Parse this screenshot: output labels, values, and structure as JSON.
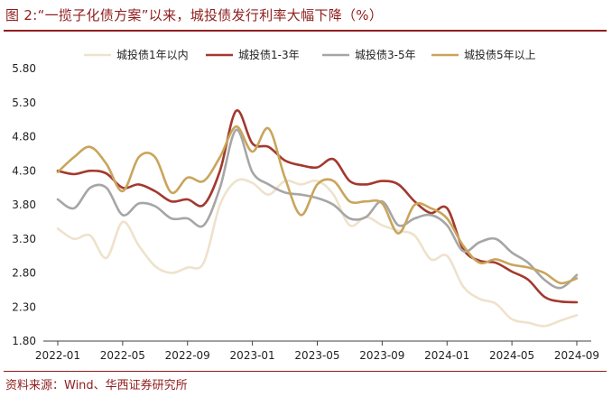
{
  "figure": {
    "title": "图 2:“一揽子化债方案”以来，城投债发行利率大幅下降（%）",
    "source": "资料来源：Wind、华西证券研究所"
  },
  "colors": {
    "brand": "#8f1d1d",
    "series": [
      "#efe2cc",
      "#a3392e",
      "#a6a6a6",
      "#c9a55c"
    ]
  },
  "chart_data": {
    "type": "line",
    "title": "",
    "xlabel": "",
    "ylabel": "",
    "ylim": [
      1.8,
      5.8
    ],
    "yticks": [
      "5.80",
      "5.30",
      "4.80",
      "4.30",
      "3.80",
      "3.30",
      "2.80",
      "2.30",
      "1.80"
    ],
    "xticks": [
      "2022-01",
      "2022-05",
      "2022-09",
      "2023-01",
      "2023-05",
      "2023-09",
      "2024-01",
      "2024-05",
      "2024-09"
    ],
    "x": [
      "2022-01",
      "2022-02",
      "2022-03",
      "2022-04",
      "2022-05",
      "2022-06",
      "2022-07",
      "2022-08",
      "2022-09",
      "2022-10",
      "2022-11",
      "2022-12",
      "2023-01",
      "2023-02",
      "2023-03",
      "2023-04",
      "2023-05",
      "2023-06",
      "2023-07",
      "2023-08",
      "2023-09",
      "2023-10",
      "2023-11",
      "2023-12",
      "2024-01",
      "2024-02",
      "2024-03",
      "2024-04",
      "2024-05",
      "2024-06",
      "2024-07",
      "2024-08",
      "2024-09"
    ],
    "grid": false,
    "legend_position": "top",
    "series": [
      {
        "name": "城投债1年以内",
        "values": [
          3.45,
          3.3,
          3.35,
          3.02,
          3.55,
          3.2,
          2.9,
          2.8,
          2.88,
          2.95,
          3.8,
          4.15,
          4.12,
          3.95,
          4.15,
          4.1,
          4.15,
          3.95,
          3.5,
          3.62,
          3.5,
          3.42,
          3.35,
          3.0,
          3.05,
          2.6,
          2.42,
          2.35,
          2.12,
          2.07,
          2.02,
          2.1,
          2.18
        ]
      },
      {
        "name": "城投债1-3年",
        "values": [
          4.3,
          4.25,
          4.3,
          4.26,
          4.05,
          4.1,
          4.0,
          3.85,
          3.88,
          3.8,
          4.3,
          5.18,
          4.7,
          4.65,
          4.45,
          4.38,
          4.35,
          4.47,
          4.15,
          4.1,
          4.15,
          4.1,
          3.85,
          3.68,
          3.75,
          3.15,
          2.98,
          2.95,
          2.82,
          2.7,
          2.45,
          2.38,
          2.37
        ]
      },
      {
        "name": "城投债3-5年",
        "values": [
          3.88,
          3.75,
          4.05,
          4.05,
          3.65,
          3.82,
          3.78,
          3.6,
          3.6,
          3.5,
          4.05,
          4.9,
          4.28,
          4.1,
          3.98,
          3.95,
          3.9,
          3.8,
          3.6,
          3.62,
          3.85,
          3.5,
          3.6,
          3.65,
          3.5,
          3.12,
          3.25,
          3.3,
          3.1,
          2.95,
          2.7,
          2.58,
          2.77
        ]
      },
      {
        "name": "城投债5年以上",
        "values": [
          4.28,
          4.5,
          4.65,
          4.4,
          4.0,
          4.5,
          4.5,
          3.98,
          4.2,
          4.15,
          4.5,
          4.95,
          4.58,
          4.92,
          4.2,
          3.65,
          4.1,
          4.15,
          3.85,
          3.85,
          3.82,
          3.38,
          3.8,
          3.75,
          3.6,
          3.2,
          2.95,
          3.0,
          2.92,
          2.88,
          2.8,
          2.65,
          2.72
        ]
      }
    ]
  }
}
